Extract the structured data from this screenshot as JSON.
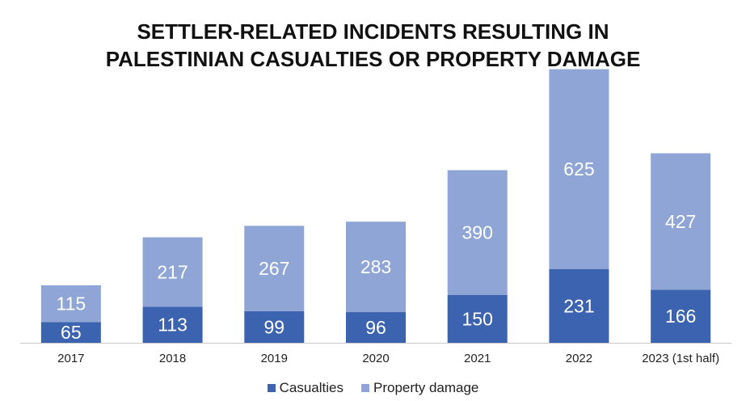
{
  "chart_data": {
    "type": "bar",
    "stacked": true,
    "title_lines": [
      "SETTLER-RELATED INCIDENTS RESULTING IN",
      "PALESTINIAN CASUALTIES OR PROPERTY DAMAGE"
    ],
    "categories": [
      "2017",
      "2018",
      "2019",
      "2020",
      "2021",
      "2022",
      "2023 (1st half)"
    ],
    "series": [
      {
        "name": "Casualties",
        "color": "#3C63B0",
        "values": [
          65,
          113,
          99,
          96,
          150,
          231,
          166
        ]
      },
      {
        "name": "Property damage",
        "color": "#8FA5D5",
        "values": [
          115,
          217,
          267,
          283,
          390,
          625,
          427
        ]
      }
    ],
    "ylim": [
      0,
      860
    ],
    "xlabel": "",
    "ylabel": "",
    "grid": false,
    "legend_position": "bottom"
  }
}
